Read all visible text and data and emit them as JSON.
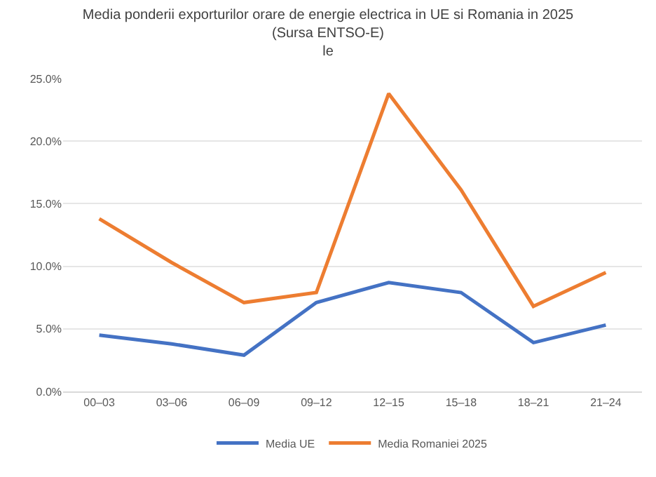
{
  "chart_data": {
    "type": "line",
    "title": "Media ponderii exporturilor orare de energie electrica in UE si Romania in 2025",
    "subtitle": "(Sursa ENTSO-E)",
    "annotations": [
      "le"
    ],
    "categories": [
      "00–03",
      "03–06",
      "06–09",
      "09–12",
      "12–15",
      "15–18",
      "18–21",
      "21–24"
    ],
    "series": [
      {
        "name": "Media UE",
        "color": "#4472c4",
        "values": [
          4.5,
          3.8,
          2.9,
          7.1,
          8.7,
          7.9,
          3.9,
          5.3
        ]
      },
      {
        "name": "Media Romaniei 2025",
        "color": "#ed7d31",
        "values": [
          13.8,
          10.3,
          7.1,
          7.9,
          23.8,
          16.1,
          6.8,
          9.5
        ]
      }
    ],
    "ylim": [
      0,
      25
    ],
    "yticks": [
      {
        "value": 0,
        "label": "0.0%"
      },
      {
        "value": 5,
        "label": "5.0%"
      },
      {
        "value": 10,
        "label": "10.0%"
      },
      {
        "value": 15,
        "label": "15.0%"
      },
      {
        "value": 20,
        "label": "20.0%"
      },
      {
        "value": 25,
        "label": "25.0%"
      }
    ],
    "grid": "y",
    "legend": "bottom",
    "marker": "none",
    "line_style": "solid"
  }
}
